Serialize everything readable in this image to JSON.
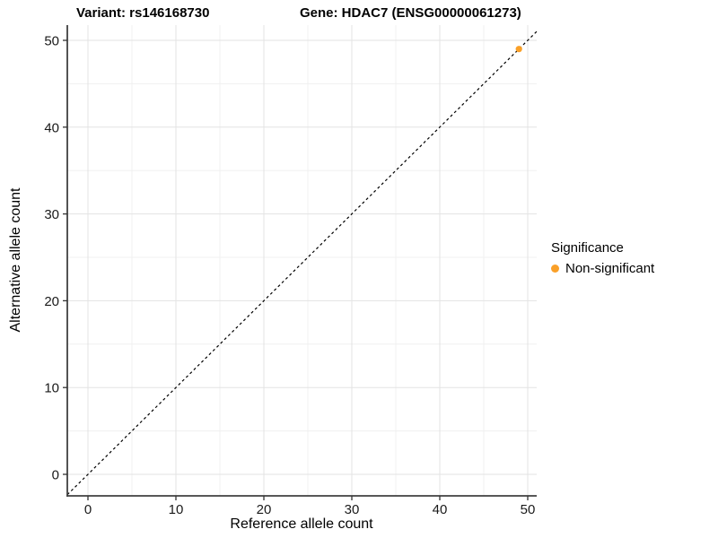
{
  "chart_data": {
    "type": "scatter",
    "titles": {
      "left": "Variant: rs146168730",
      "right": "Gene: HDAC7 (ENSG00000061273)"
    },
    "xlabel": "Reference allele count",
    "ylabel": "Alternative allele count",
    "xlim": [
      -2.5,
      52.5
    ],
    "ylim": [
      -2.5,
      52.5
    ],
    "x_ticks": [
      0,
      10,
      20,
      30,
      40,
      50
    ],
    "y_ticks": [
      0,
      10,
      20,
      30,
      40,
      50
    ],
    "x_minor_ticks": [
      5,
      15,
      25,
      35,
      45
    ],
    "y_minor_ticks": [
      5,
      15,
      25,
      35,
      45
    ],
    "grid": {
      "show": true,
      "major_color": "#E3E3E3",
      "minor_color": "#F0F0F0"
    },
    "axis_line_color": "#404040",
    "tick_color": "#333333",
    "tick_label_color": "#1a1a1a",
    "reference_line": {
      "kind": "identity y=x",
      "style": "dashed",
      "color": "#000000"
    },
    "legend": {
      "title": "Significance",
      "position": "right",
      "entries": [
        {
          "label": "Non-significant",
          "color": "#FAA028"
        }
      ]
    },
    "series": [
      {
        "name": "Non-significant",
        "color": "#FAA028",
        "marker": "circle",
        "points": [
          {
            "x": 49,
            "y": 49
          }
        ]
      }
    ]
  }
}
